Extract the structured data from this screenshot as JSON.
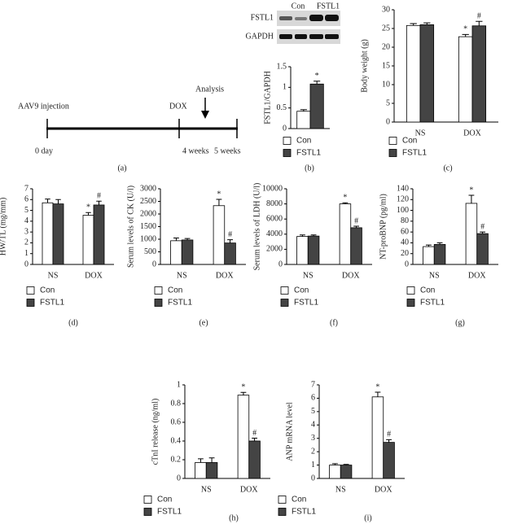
{
  "timeline": {
    "injection": "AAV9 injection",
    "dox": "DOX",
    "analysis": "Analysis",
    "t0": "0 day",
    "t4": "4 weeks",
    "t5": "5 weeks",
    "panel": "(a)"
  },
  "blot": {
    "lanes": [
      "Con",
      "FSTL1"
    ],
    "rows": [
      "FSTL1",
      "GAPDH"
    ]
  },
  "chart_data": [
    {
      "type": "bar",
      "panel": "(b)",
      "ylabel": "FSTL1/GAPDH",
      "ylim": [
        0,
        1.5
      ],
      "yticks": [
        0,
        0.5,
        1,
        1.5
      ],
      "series": [
        {
          "name": "Con",
          "color": "#ffffff",
          "values": [
            0.42
          ],
          "errors": [
            0.04
          ]
        },
        {
          "name": "FSTL1",
          "color": "#444444",
          "values": [
            1.08
          ],
          "errors": [
            0.07
          ],
          "sig": [
            "*"
          ]
        }
      ]
    },
    {
      "type": "bar",
      "panel": "(c)",
      "ylabel": "Body weight (g)",
      "ylim": [
        0,
        30
      ],
      "yticks": [
        0,
        5,
        10,
        15,
        20,
        25,
        30
      ],
      "categories": [
        "NS",
        "DOX"
      ],
      "series": [
        {
          "name": "Con",
          "color": "#ffffff",
          "values": [
            25.8,
            22.8
          ],
          "errors": [
            0.5,
            0.6
          ],
          "sig": [
            null,
            "*"
          ]
        },
        {
          "name": "FSTL1",
          "color": "#444444",
          "values": [
            26.0,
            25.7
          ],
          "errors": [
            0.5,
            1.2
          ],
          "sig": [
            null,
            "#"
          ]
        }
      ]
    },
    {
      "type": "bar",
      "panel": "(d)",
      "ylabel": "HW/TL (mg/mm)",
      "ylim": [
        0,
        7
      ],
      "yticks": [
        0,
        1,
        2,
        3,
        4,
        5,
        6,
        7
      ],
      "categories": [
        "NS",
        "DOX"
      ],
      "series": [
        {
          "name": "Con",
          "color": "#ffffff",
          "values": [
            5.7,
            4.55
          ],
          "errors": [
            0.35,
            0.25
          ],
          "sig": [
            null,
            "*"
          ]
        },
        {
          "name": "FSTL1",
          "color": "#444444",
          "values": [
            5.6,
            5.5
          ],
          "errors": [
            0.4,
            0.35
          ],
          "sig": [
            null,
            "#"
          ]
        }
      ]
    },
    {
      "type": "bar",
      "panel": "(e)",
      "ylabel": "Serum levels of CK (U/l)",
      "ylim": [
        0,
        3000
      ],
      "yticks": [
        0,
        500,
        1000,
        1500,
        2000,
        2500,
        3000
      ],
      "categories": [
        "NS",
        "DOX"
      ],
      "series": [
        {
          "name": "Con",
          "color": "#ffffff",
          "values": [
            940,
            2330
          ],
          "errors": [
            110,
            250
          ],
          "sig": [
            null,
            "*"
          ]
        },
        {
          "name": "FSTL1",
          "color": "#444444",
          "values": [
            970,
            850
          ],
          "errors": [
            60,
            130
          ],
          "sig": [
            null,
            "#"
          ]
        }
      ]
    },
    {
      "type": "bar",
      "panel": "(f)",
      "ylabel": "Serum levels of LDH (U/l)",
      "ylim": [
        0,
        10000
      ],
      "yticks": [
        0,
        2000,
        4000,
        6000,
        8000,
        10000
      ],
      "categories": [
        "NS",
        "DOX"
      ],
      "series": [
        {
          "name": "Con",
          "color": "#ffffff",
          "values": [
            3700,
            8000
          ],
          "errors": [
            200,
            150
          ],
          "sig": [
            null,
            "*"
          ]
        },
        {
          "name": "FSTL1",
          "color": "#444444",
          "values": [
            3750,
            4850
          ],
          "errors": [
            150,
            200
          ],
          "sig": [
            null,
            "#"
          ]
        }
      ]
    },
    {
      "type": "bar",
      "panel": "(g)",
      "ylabel": "NT-proBNP (pg/ml)",
      "ylim": [
        0,
        140
      ],
      "yticks": [
        0,
        20,
        40,
        60,
        80,
        100,
        120,
        140
      ],
      "categories": [
        "NS",
        "DOX"
      ],
      "series": [
        {
          "name": "Con",
          "color": "#ffffff",
          "values": [
            33,
            113
          ],
          "errors": [
            3,
            15
          ],
          "sig": [
            null,
            "*"
          ]
        },
        {
          "name": "FSTL1",
          "color": "#444444",
          "values": [
            37,
            57
          ],
          "errors": [
            3,
            3
          ],
          "sig": [
            null,
            "#"
          ]
        }
      ]
    },
    {
      "type": "bar",
      "panel": "(h)",
      "ylabel": "cTnI release (ng/ml)",
      "ylim": [
        0,
        1
      ],
      "yticks": [
        0,
        0.2,
        0.4,
        0.6,
        0.8,
        1
      ],
      "categories": [
        "NS",
        "DOX"
      ],
      "series": [
        {
          "name": "Con",
          "color": "#ffffff",
          "values": [
            0.17,
            0.89
          ],
          "errors": [
            0.04,
            0.03
          ],
          "sig": [
            null,
            "*"
          ]
        },
        {
          "name": "FSTL1",
          "color": "#444444",
          "values": [
            0.17,
            0.4
          ],
          "errors": [
            0.05,
            0.03
          ],
          "sig": [
            null,
            "#"
          ]
        }
      ]
    },
    {
      "type": "bar",
      "panel": "(i)",
      "ylabel": "ANP mRNA level",
      "ylim": [
        0,
        7
      ],
      "yticks": [
        0,
        1,
        2,
        3,
        4,
        5,
        6,
        7
      ],
      "categories": [
        "NS",
        "DOX"
      ],
      "series": [
        {
          "name": "Con",
          "color": "#ffffff",
          "values": [
            1,
            6.1
          ],
          "errors": [
            0.1,
            0.35
          ],
          "sig": [
            null,
            "*"
          ]
        },
        {
          "name": "FSTL1",
          "color": "#444444",
          "values": [
            1,
            2.7
          ],
          "errors": [
            0.05,
            0.2
          ],
          "sig": [
            null,
            "#"
          ]
        }
      ]
    }
  ]
}
